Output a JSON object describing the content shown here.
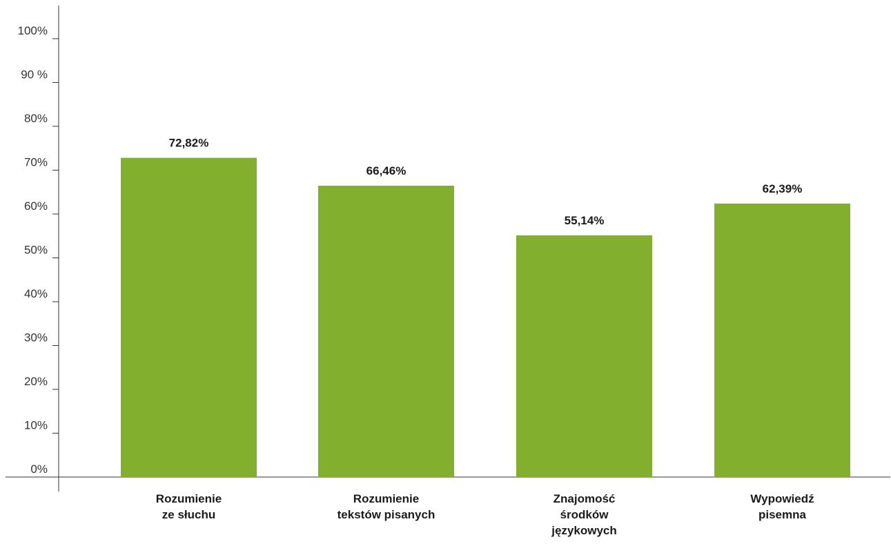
{
  "chart_data": {
    "type": "bar",
    "title": "",
    "xlabel": "",
    "ylabel": "",
    "categories": [
      [
        "Rozumienie",
        "ze słuchu"
      ],
      [
        "Rozumienie",
        "tekstów pisanych"
      ],
      [
        "Znajomość",
        "środków",
        "językowych"
      ],
      [
        "Wypowiedź",
        "pisemna"
      ]
    ],
    "values": [
      72.82,
      66.46,
      55.14,
      62.39
    ],
    "value_labels": [
      "72,82%",
      "66,46%",
      "55,14%",
      "62,39%"
    ],
    "ylim": [
      0,
      100
    ],
    "y_ticks": [
      0,
      10,
      20,
      30,
      40,
      50,
      60,
      70,
      80,
      90,
      100
    ],
    "y_tick_labels": [
      "0%",
      "10%",
      "20%",
      "30%",
      "40%",
      "50%",
      "60%",
      "70%",
      "80%",
      "90 %",
      "100%"
    ],
    "grid": false,
    "legend": "none",
    "bar_color": "#82b02e",
    "axis_color": "#333333"
  }
}
